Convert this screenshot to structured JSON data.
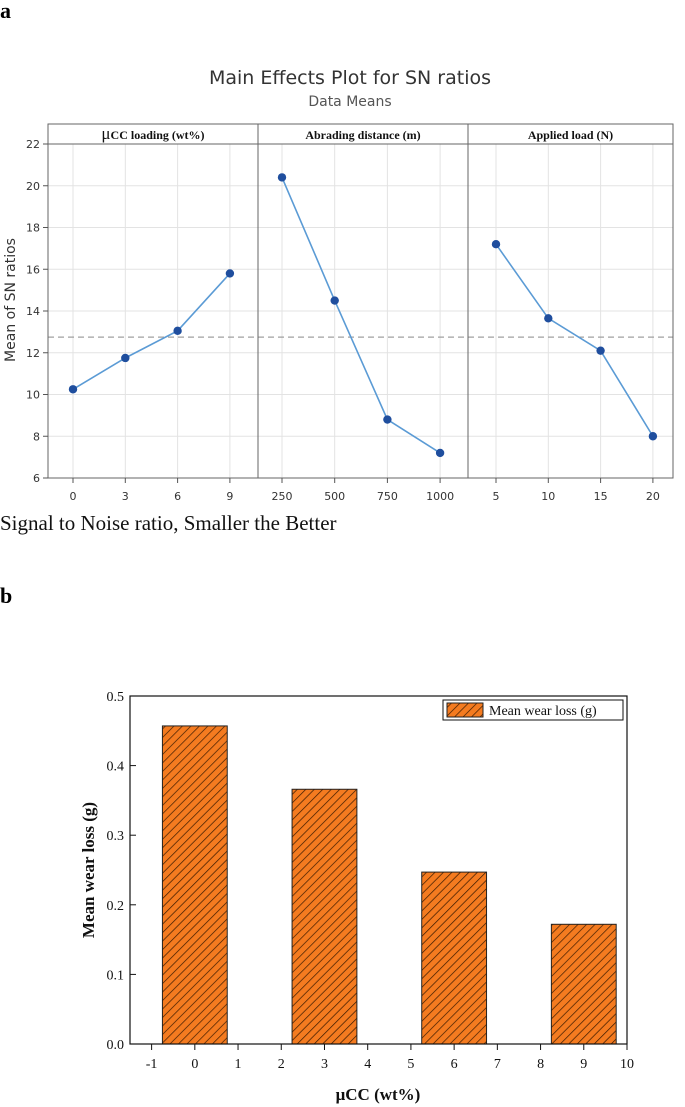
{
  "panel_a_label": "a",
  "panel_b_label": "b",
  "colors": {
    "line": "#5b9bd5",
    "marker": "#1f4e9e",
    "bar_fill": "#f47b20",
    "bar_hatch": "#3a1a00",
    "grid": "#e3e3e3",
    "mean_line": "#a0a0a0"
  },
  "chart_data": [
    {
      "type": "line",
      "title": "Main Effects Plot for SN ratios",
      "subtitle": "Data Means",
      "ylabel": "Mean of SN ratios",
      "ylim": [
        6,
        22
      ],
      "yticks": [
        6,
        8,
        10,
        12,
        14,
        16,
        18,
        20,
        22
      ],
      "grid": true,
      "mean_line": 12.75,
      "footer": "Signal to Noise ratio, Smaller the Better",
      "panels": [
        {
          "name": "μCC loading (wt%)",
          "name_symbol": "μ",
          "name_text": "CC loading (wt%)",
          "categories": [
            "0",
            "3",
            "6",
            "9"
          ],
          "values": [
            10.25,
            11.75,
            13.05,
            15.8
          ]
        },
        {
          "name": "Abrading distance (m)",
          "categories": [
            "250",
            "500",
            "750",
            "1000"
          ],
          "values": [
            20.4,
            14.5,
            8.8,
            7.2
          ]
        },
        {
          "name": "Applied load (N)",
          "categories": [
            "5",
            "10",
            "15",
            "20"
          ],
          "values": [
            17.2,
            13.65,
            12.1,
            8.0
          ]
        }
      ]
    },
    {
      "type": "bar",
      "categories": [
        0,
        3,
        6,
        9
      ],
      "values": [
        0.457,
        0.366,
        0.247,
        0.172
      ],
      "xlabel": "μCC (wt%)",
      "ylabel": "Mean wear loss (g)",
      "xlim": [
        -1.5,
        10
      ],
      "xticks": [
        -1,
        0,
        1,
        2,
        3,
        4,
        5,
        6,
        7,
        8,
        9,
        10
      ],
      "ylim": [
        0.0,
        0.5
      ],
      "yticks": [
        "0.0",
        "0.1",
        "0.2",
        "0.3",
        "0.4",
        "0.5"
      ],
      "legend": "Mean wear loss (g)",
      "legend_position": "top-right"
    }
  ]
}
